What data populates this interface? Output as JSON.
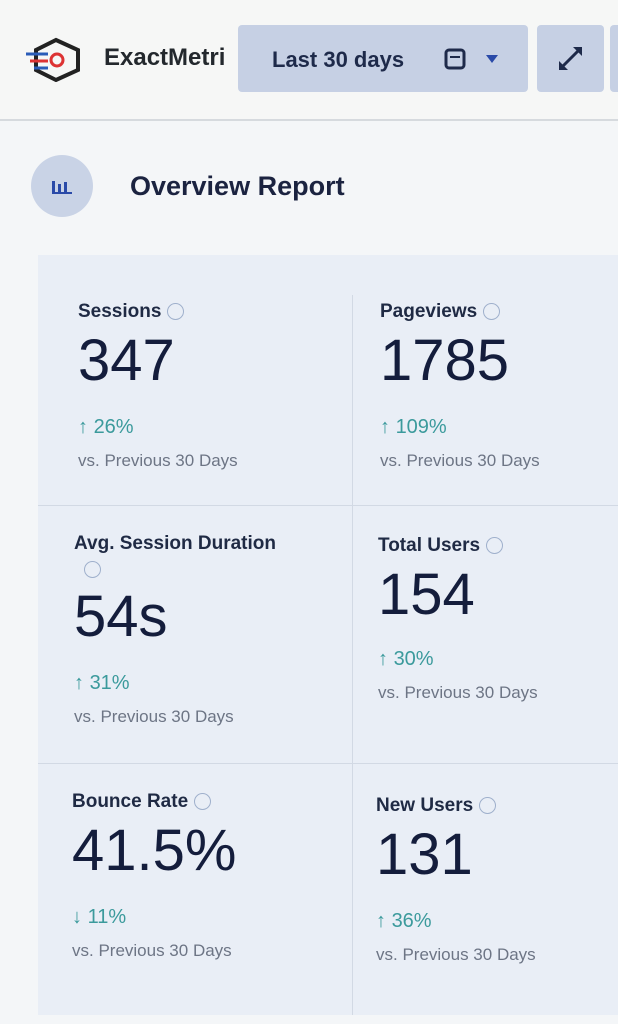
{
  "header": {
    "brand": "ExactMetri",
    "date_range": "Last 30 days"
  },
  "report": {
    "title": "Overview Report",
    "metrics": [
      {
        "label": "Sessions",
        "value": "347",
        "change": "26%",
        "comparison": "vs. Previous 30 Days"
      },
      {
        "label": "Pageviews",
        "value": "1785",
        "change": "109%",
        "comparison": "vs. Previous 30 Days"
      },
      {
        "label": "Avg. Session Duration",
        "value": "54s",
        "change": "31%",
        "comparison": "vs. Previous 30 Days"
      },
      {
        "label": "Total Users",
        "value": "154",
        "change": "30%",
        "comparison": "vs. Previous 30 Days"
      },
      {
        "label": "Bounce Rate",
        "value": "41.5%",
        "change": "11%",
        "comparison": "vs. Previous 30 Days"
      },
      {
        "label": "New Users",
        "value": "131",
        "change": "36%",
        "comparison": "vs. Previous 30 Days"
      }
    ]
  }
}
